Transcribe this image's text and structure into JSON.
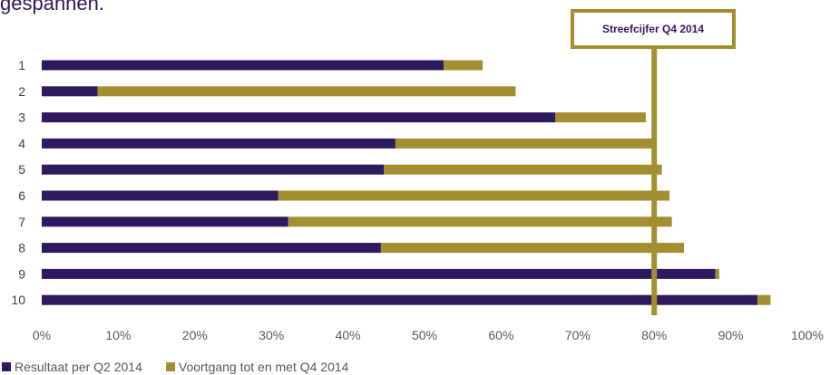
{
  "heading_fragment": "gespannen.",
  "target_label": "Streefcijfer Q4 2014",
  "colors": {
    "series1": "#2e1a5e",
    "series2": "#a38f2f",
    "target": "#a38f2f"
  },
  "legend": [
    {
      "label": "Resultaat per Q2 2014",
      "color": "#2e1a5e"
    },
    {
      "label": "Voortgang tot en met Q4 2014",
      "color": "#a38f2f"
    }
  ],
  "chart_data": {
    "type": "bar",
    "orientation": "horizontal",
    "stacked": true,
    "categories": [
      "1",
      "2",
      "3",
      "4",
      "5",
      "6",
      "7",
      "8",
      "9",
      "10"
    ],
    "series": [
      {
        "name": "Resultaat per Q2 2014",
        "values": [
          52.5,
          7.3,
          67.1,
          46.2,
          44.7,
          30.9,
          32.2,
          44.3,
          88.0,
          93.5
        ]
      },
      {
        "name": "Voortgang tot en met Q4 2014",
        "values": [
          5.1,
          54.6,
          11.8,
          33.8,
          36.3,
          51.1,
          50.1,
          39.6,
          0.5,
          1.7
        ]
      }
    ],
    "target": {
      "label": "Streefcijfer Q4 2014",
      "value": 80
    },
    "xlim": [
      0,
      100
    ],
    "xticks": [
      "0%",
      "10%",
      "20%",
      "30%",
      "40%",
      "50%",
      "60%",
      "70%",
      "80%",
      "90%",
      "100%"
    ],
    "grid": false,
    "legend_position": "bottom-left"
  }
}
